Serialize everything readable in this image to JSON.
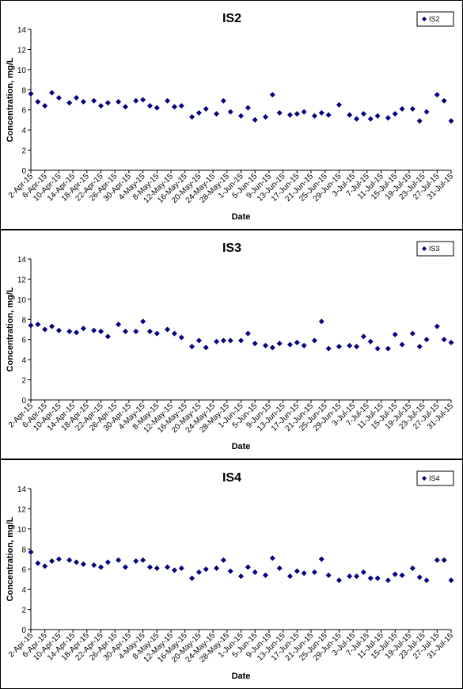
{
  "chart_data": [
    {
      "type": "scatter",
      "title": "IS2",
      "xlabel": "Date",
      "ylabel": "Concentration, mg/L",
      "x": [
        "2-Apr-15",
        "4-Apr-15",
        "6-Apr-15",
        "8-Apr-15",
        "10-Apr-15",
        "13-Apr-15",
        "15-Apr-15",
        "17-Apr-15",
        "20-Apr-15",
        "22-Apr-15",
        "24-Apr-15",
        "27-Apr-15",
        "29-Apr-15",
        "2-May-15",
        "4-May-15",
        "6-May-15",
        "8-May-15",
        "11-May-15",
        "13-May-15",
        "15-May-15",
        "18-May-15",
        "20-May-15",
        "22-May-15",
        "25-May-15",
        "27-May-15",
        "29-May-15",
        "1-Jun-15",
        "3-Jun-15",
        "5-Jun-15",
        "8-Jun-15",
        "10-Jun-15",
        "12-Jun-15",
        "15-Jun-15",
        "17-Jun-15",
        "19-Jun-15",
        "22-Jun-15",
        "24-Jun-15",
        "26-Jun-15",
        "29-Jun-15",
        "2-Jul-15",
        "4-Jul-15",
        "6-Jul-15",
        "8-Jul-15",
        "10-Jul-15",
        "13-Jul-15",
        "15-Jul-15",
        "17-Jul-15",
        "20-Jul-15",
        "22-Jul-15",
        "24-Jul-15",
        "27-Jul-15",
        "29-Jul-15",
        "31-Jul-15"
      ],
      "series": [
        {
          "name": "IS2",
          "color": "#000080",
          "values": [
            7.6,
            6.8,
            6.4,
            7.7,
            7.2,
            6.7,
            7.2,
            6.8,
            6.9,
            6.4,
            6.7,
            6.8,
            6.3,
            6.9,
            7.0,
            6.4,
            6.2,
            6.9,
            6.3,
            6.4,
            5.3,
            5.7,
            6.1,
            5.6,
            6.9,
            5.8,
            5.4,
            6.2,
            5.0,
            5.3,
            7.5,
            5.7,
            5.5,
            5.6,
            5.8,
            5.4,
            5.7,
            5.5,
            6.5,
            5.5,
            5.1,
            5.6,
            5.1,
            5.4,
            5.2,
            5.6,
            6.1,
            6.1,
            4.9,
            5.8,
            7.5,
            6.9,
            4.9
          ]
        }
      ],
      "xlim": [
        "2-Apr-15",
        "31-Jul-15"
      ],
      "ylim": [
        0,
        14
      ],
      "yticks": [
        0,
        2,
        4,
        6,
        8,
        10,
        12,
        14
      ],
      "xticks": [
        "2-Apr-15",
        "6-Apr-15",
        "10-Apr-15",
        "14-Apr-15",
        "18-Apr-15",
        "22-Apr-15",
        "26-Apr-15",
        "30-Apr-15",
        "4-May-15",
        "8-May-15",
        "12-May-15",
        "16-May-15",
        "20-May-15",
        "24-May-15",
        "28-May-15",
        "1-Jun-15",
        "5-Jun-15",
        "9-Jun-15",
        "13-Jun-15",
        "17-Jun-15",
        "21-Jun-15",
        "25-Jun-15",
        "29-Jun-15",
        "3-Jul-15",
        "7-Jul-15",
        "11-Jul-15",
        "15-Jul-15",
        "19-Jul-15",
        "23-Jul-15",
        "27-Jul-15",
        "31-Jul-15"
      ],
      "grid": false,
      "legend": "top-right"
    },
    {
      "type": "scatter",
      "title": "IS3",
      "xlabel": "Date",
      "ylabel": "Concentration, mg/L",
      "x": [
        "2-Apr-15",
        "4-Apr-15",
        "6-Apr-15",
        "8-Apr-15",
        "10-Apr-15",
        "13-Apr-15",
        "15-Apr-15",
        "17-Apr-15",
        "20-Apr-15",
        "22-Apr-15",
        "24-Apr-15",
        "27-Apr-15",
        "29-Apr-15",
        "2-May-15",
        "4-May-15",
        "6-May-15",
        "8-May-15",
        "11-May-15",
        "13-May-15",
        "15-May-15",
        "18-May-15",
        "20-May-15",
        "22-May-15",
        "25-May-15",
        "27-May-15",
        "29-May-15",
        "1-Jun-15",
        "3-Jun-15",
        "5-Jun-15",
        "8-Jun-15",
        "10-Jun-15",
        "12-Jun-15",
        "15-Jun-15",
        "17-Jun-15",
        "19-Jun-15",
        "22-Jun-15",
        "24-Jun-15",
        "26-Jun-15",
        "29-Jun-15",
        "2-Jul-15",
        "4-Jul-15",
        "6-Jul-15",
        "8-Jul-15",
        "10-Jul-15",
        "13-Jul-15",
        "15-Jul-15",
        "17-Jul-15",
        "20-Jul-15",
        "22-Jul-15",
        "24-Jul-15",
        "27-Jul-15",
        "29-Jul-15",
        "31-Jul-15"
      ],
      "series": [
        {
          "name": "IS3",
          "color": "#000080",
          "values": [
            7.4,
            7.5,
            7.0,
            7.3,
            6.9,
            6.8,
            6.7,
            7.1,
            6.9,
            6.8,
            6.3,
            7.5,
            6.8,
            6.8,
            7.8,
            6.8,
            6.6,
            7.0,
            6.6,
            6.2,
            5.3,
            5.9,
            5.2,
            5.8,
            5.9,
            5.9,
            5.9,
            6.6,
            5.6,
            5.4,
            5.2,
            5.6,
            5.5,
            5.7,
            5.4,
            5.9,
            7.8,
            5.1,
            5.3,
            5.4,
            5.3,
            6.3,
            5.8,
            5.1,
            5.1,
            6.5,
            5.5,
            6.6,
            5.3,
            6.0,
            7.3,
            6.0,
            5.7
          ]
        }
      ],
      "xlim": [
        "2-Apr-15",
        "31-Jul-15"
      ],
      "ylim": [
        0,
        14
      ],
      "yticks": [
        0,
        2,
        4,
        6,
        8,
        10,
        12,
        14
      ],
      "xticks": [
        "2-Apr-15",
        "6-Apr-15",
        "10-Apr-15",
        "14-Apr-15",
        "18-Apr-15",
        "22-Apr-15",
        "26-Apr-15",
        "30-Apr-15",
        "4-May-15",
        "8-May-15",
        "12-May-15",
        "16-May-15",
        "20-May-15",
        "24-May-15",
        "28-May-15",
        "1-Jun-15",
        "5-Jun-15",
        "9-Jun-15",
        "13-Jun-15",
        "17-Jun-15",
        "21-Jun-15",
        "25-Jun-15",
        "29-Jun-15",
        "3-Jul-15",
        "7-Jul-15",
        "11-Jul-15",
        "15-Jul-15",
        "19-Jul-15",
        "23-Jul-15",
        "27-Jul-15",
        "31-Jul-15"
      ],
      "grid": false,
      "legend": "top-right"
    },
    {
      "type": "scatter",
      "title": "IS4",
      "xlabel": "Date",
      "ylabel": "Concentration, mg/L",
      "x": [
        "2-Apr-15",
        "4-Apr-15",
        "6-Apr-15",
        "8-Apr-15",
        "10-Apr-15",
        "13-Apr-15",
        "15-Apr-15",
        "17-Apr-15",
        "20-Apr-15",
        "22-Apr-15",
        "24-Apr-15",
        "27-Apr-15",
        "29-Apr-15",
        "2-May-15",
        "4-May-15",
        "6-May-15",
        "8-May-15",
        "11-May-15",
        "13-May-15",
        "15-May-15",
        "18-May-15",
        "20-May-15",
        "22-May-15",
        "25-May-15",
        "27-May-15",
        "29-May-15",
        "1-Jun-15",
        "3-Jun-15",
        "5-Jun-15",
        "8-Jun-15",
        "10-Jun-15",
        "12-Jun-15",
        "15-Jun-15",
        "17-Jun-15",
        "19-Jun-15",
        "22-Jun-15",
        "24-Jun-15",
        "26-Jun-15",
        "29-Jun-15",
        "2-Jul-15",
        "4-Jul-15",
        "6-Jul-15",
        "8-Jul-15",
        "10-Jul-15",
        "13-Jul-15",
        "15-Jul-15",
        "17-Jul-15",
        "20-Jul-15",
        "22-Jul-15",
        "24-Jul-15",
        "27-Jul-15",
        "29-Jul-15",
        "31-Jul-15"
      ],
      "series": [
        {
          "name": "IS4",
          "color": "#000080",
          "values": [
            7.7,
            6.6,
            6.3,
            6.8,
            7.0,
            6.9,
            6.7,
            6.5,
            6.4,
            6.2,
            6.7,
            6.9,
            6.2,
            6.8,
            6.9,
            6.2,
            6.1,
            6.2,
            5.9,
            6.1,
            5.1,
            5.7,
            6.0,
            6.1,
            6.9,
            5.8,
            5.3,
            6.2,
            5.7,
            5.4,
            7.1,
            6.1,
            5.3,
            5.8,
            5.6,
            5.7,
            7.0,
            5.4,
            4.9,
            5.3,
            5.3,
            5.7,
            5.1,
            5.1,
            4.9,
            5.5,
            5.4,
            6.1,
            5.2,
            4.9,
            6.9,
            6.9,
            4.9
          ]
        }
      ],
      "xlim": [
        "2-Apr-15",
        "31-Jul-15"
      ],
      "ylim": [
        0,
        14
      ],
      "yticks": [
        0,
        2,
        4,
        6,
        8,
        10,
        12,
        14
      ],
      "xticks": [
        "2-Apr-15",
        "6-Apr-15",
        "10-Apr-15",
        "14-Apr-15",
        "18-Apr-15",
        "22-Apr-15",
        "26-Apr-15",
        "30-Apr-15",
        "4-May-15",
        "8-May-15",
        "12-May-15",
        "16-May-15",
        "20-May-15",
        "24-May-15",
        "28-May-15",
        "1-Jun-15",
        "5-Jun-15",
        "9-Jun-15",
        "13-Jun-15",
        "17-Jun-15",
        "21-Jun-15",
        "25-Jun-15",
        "29-Jun-15",
        "3-Jul-15",
        "7-Jul-15",
        "11-Jul-15",
        "15-Jul-15",
        "19-Jul-15",
        "23-Jul-15",
        "27-Jul-15",
        "31-Jul-15"
      ],
      "grid": false,
      "legend": "top-right"
    }
  ]
}
